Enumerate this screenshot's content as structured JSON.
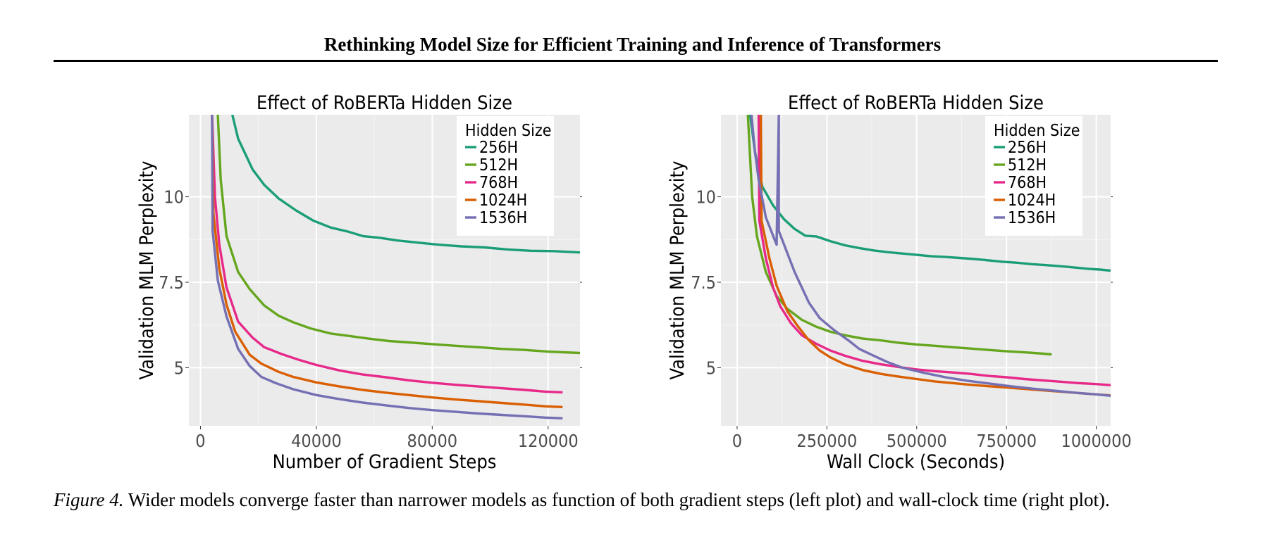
{
  "paper": {
    "header_title": "Rethinking Model Size for Efficient Training and Inference of Transformers",
    "caption_label": "Figure 4.",
    "caption_text": " Wider models converge faster than narrower models as function of both gradient steps (left plot) and wall-clock time (right plot)."
  },
  "chart_data": [
    {
      "type": "line",
      "title": "Effect of RoBERTa Hidden Size",
      "xlabel": "Number of Gradient Steps",
      "ylabel": "Validation MLM Perplexity",
      "xlim": [
        -4000,
        131000
      ],
      "ylim": [
        3.3,
        12.4
      ],
      "xticks": [
        0,
        40000,
        80000,
        120000
      ],
      "xtick_labels": [
        "0",
        "40000",
        "80000",
        "120000"
      ],
      "yticks": [
        5,
        7.5,
        10
      ],
      "ytick_labels": [
        "5",
        "7.5",
        "10"
      ],
      "grid": true,
      "legend_title": "Hidden Size",
      "legend_position": "top-right",
      "series": [
        {
          "name": "256H",
          "color": "#1b9e77",
          "points": [
            [
              11000,
              12.4
            ],
            [
              13000,
              11.7
            ],
            [
              18000,
              10.8
            ],
            [
              22000,
              10.35
            ],
            [
              27000,
              9.95
            ],
            [
              33000,
              9.6
            ],
            [
              39000,
              9.3
            ],
            [
              45000,
              9.1
            ],
            [
              51000,
              8.98
            ],
            [
              56000,
              8.85
            ],
            [
              62000,
              8.8
            ],
            [
              68000,
              8.72
            ],
            [
              75000,
              8.66
            ],
            [
              82000,
              8.6
            ],
            [
              90000,
              8.55
            ],
            [
              98000,
              8.52
            ],
            [
              106000,
              8.46
            ],
            [
              114000,
              8.42
            ],
            [
              122000,
              8.41
            ],
            [
              131000,
              8.37
            ]
          ]
        },
        {
          "name": "512H",
          "color": "#66a61e",
          "points": [
            [
              6000,
              12.4
            ],
            [
              7000,
              10.5
            ],
            [
              9000,
              8.85
            ],
            [
              13000,
              7.8
            ],
            [
              17000,
              7.3
            ],
            [
              22000,
              6.82
            ],
            [
              27000,
              6.52
            ],
            [
              32000,
              6.33
            ],
            [
              38000,
              6.15
            ],
            [
              45000,
              6.0
            ],
            [
              52000,
              5.92
            ],
            [
              58000,
              5.85
            ],
            [
              65000,
              5.78
            ],
            [
              72000,
              5.74
            ],
            [
              80000,
              5.69
            ],
            [
              88000,
              5.64
            ],
            [
              96000,
              5.6
            ],
            [
              104000,
              5.55
            ],
            [
              112000,
              5.52
            ],
            [
              120000,
              5.47
            ],
            [
              131000,
              5.43
            ]
          ]
        },
        {
          "name": "768H",
          "color": "#e7298a",
          "points": [
            [
              4000,
              12.4
            ],
            [
              5000,
              10.0
            ],
            [
              6500,
              8.6
            ],
            [
              9000,
              7.35
            ],
            [
              13000,
              6.35
            ],
            [
              18000,
              5.88
            ],
            [
              22000,
              5.6
            ],
            [
              28000,
              5.4
            ],
            [
              34000,
              5.23
            ],
            [
              40000,
              5.08
            ],
            [
              48000,
              4.92
            ],
            [
              56000,
              4.8
            ],
            [
              64000,
              4.72
            ],
            [
              72000,
              4.63
            ],
            [
              80000,
              4.56
            ],
            [
              88000,
              4.5
            ],
            [
              96000,
              4.45
            ],
            [
              104000,
              4.4
            ],
            [
              112000,
              4.35
            ],
            [
              119000,
              4.3
            ],
            [
              125000,
              4.28
            ]
          ]
        },
        {
          "name": "1024H",
          "color": "#d95f02",
          "points": [
            [
              4000,
              12.4
            ],
            [
              4500,
              9.5
            ],
            [
              6500,
              7.9
            ],
            [
              9000,
              6.85
            ],
            [
              12000,
              6.05
            ],
            [
              17000,
              5.38
            ],
            [
              21000,
              5.12
            ],
            [
              27000,
              4.88
            ],
            [
              32000,
              4.73
            ],
            [
              40000,
              4.57
            ],
            [
              48000,
              4.45
            ],
            [
              56000,
              4.35
            ],
            [
              64000,
              4.27
            ],
            [
              72000,
              4.2
            ],
            [
              80000,
              4.13
            ],
            [
              88000,
              4.07
            ],
            [
              96000,
              4.02
            ],
            [
              104000,
              3.97
            ],
            [
              112000,
              3.92
            ],
            [
              119000,
              3.87
            ],
            [
              125000,
              3.85
            ]
          ]
        },
        {
          "name": "1536H",
          "color": "#7570b3",
          "points": [
            [
              4000,
              12.4
            ],
            [
              4200,
              9.0
            ],
            [
              6000,
              7.55
            ],
            [
              9000,
              6.5
            ],
            [
              13000,
              5.55
            ],
            [
              17000,
              5.05
            ],
            [
              21000,
              4.73
            ],
            [
              26000,
              4.55
            ],
            [
              32000,
              4.37
            ],
            [
              40000,
              4.2
            ],
            [
              48000,
              4.08
            ],
            [
              56000,
              3.98
            ],
            [
              64000,
              3.9
            ],
            [
              72000,
              3.82
            ],
            [
              80000,
              3.76
            ],
            [
              88000,
              3.71
            ],
            [
              96000,
              3.66
            ],
            [
              104000,
              3.62
            ],
            [
              112000,
              3.58
            ],
            [
              119000,
              3.54
            ],
            [
              125000,
              3.52
            ]
          ]
        }
      ]
    },
    {
      "type": "line",
      "title": "Effect of RoBERTa Hidden Size",
      "xlabel": "Wall Clock (Seconds)",
      "ylabel": "Validation MLM Perplexity",
      "xlim": [
        -45000,
        1040000
      ],
      "ylim": [
        3.3,
        12.4
      ],
      "xticks": [
        0,
        250000,
        500000,
        750000,
        1000000
      ],
      "xtick_labels": [
        "0",
        "250000",
        "500000",
        "750000",
        "1000000"
      ],
      "yticks": [
        5,
        7.5,
        10
      ],
      "ytick_labels": [
        "5",
        "7.5",
        "10"
      ],
      "grid": true,
      "legend_title": "Hidden Size",
      "legend_position": "top-right",
      "series": [
        {
          "name": "256H",
          "color": "#1b9e77",
          "points": [
            [
              36000,
              12.4
            ],
            [
              50000,
              11.3
            ],
            [
              70000,
              10.3
            ],
            [
              100000,
              9.75
            ],
            [
              130000,
              9.35
            ],
            [
              160000,
              9.06
            ],
            [
              190000,
              8.86
            ],
            [
              220000,
              8.84
            ],
            [
              260000,
              8.7
            ],
            [
              300000,
              8.58
            ],
            [
              340000,
              8.5
            ],
            [
              380000,
              8.43
            ],
            [
              420000,
              8.38
            ],
            [
              460000,
              8.34
            ],
            [
              500000,
              8.3
            ],
            [
              540000,
              8.26
            ],
            [
              580000,
              8.24
            ],
            [
              620000,
              8.21
            ],
            [
              660000,
              8.18
            ],
            [
              700000,
              8.14
            ],
            [
              740000,
              8.1
            ],
            [
              780000,
              8.07
            ],
            [
              820000,
              8.03
            ],
            [
              860000,
              8.0
            ],
            [
              900000,
              7.97
            ],
            [
              940000,
              7.93
            ],
            [
              980000,
              7.89
            ],
            [
              1010000,
              7.87
            ],
            [
              1040000,
              7.84
            ]
          ]
        },
        {
          "name": "512H",
          "color": "#66a61e",
          "points": [
            [
              30000,
              12.4
            ],
            [
              42000,
              10.0
            ],
            [
              55000,
              8.85
            ],
            [
              80000,
              7.8
            ],
            [
              110000,
              7.1
            ],
            [
              140000,
              6.72
            ],
            [
              180000,
              6.4
            ],
            [
              220000,
              6.2
            ],
            [
              260000,
              6.05
            ],
            [
              300000,
              5.95
            ],
            [
              350000,
              5.85
            ],
            [
              400000,
              5.8
            ],
            [
              450000,
              5.73
            ],
            [
              500000,
              5.68
            ],
            [
              550000,
              5.64
            ],
            [
              600000,
              5.6
            ],
            [
              650000,
              5.56
            ],
            [
              700000,
              5.52
            ],
            [
              750000,
              5.48
            ],
            [
              800000,
              5.45
            ],
            [
              840000,
              5.42
            ],
            [
              876000,
              5.39
            ]
          ]
        },
        {
          "name": "768H",
          "color": "#e7298a",
          "points": [
            [
              60000,
              12.4
            ],
            [
              62000,
              9.3
            ],
            [
              80000,
              8.2
            ],
            [
              100000,
              7.35
            ],
            [
              120000,
              6.8
            ],
            [
              150000,
              6.3
            ],
            [
              180000,
              5.95
            ],
            [
              220000,
              5.7
            ],
            [
              260000,
              5.5
            ],
            [
              300000,
              5.35
            ],
            [
              350000,
              5.2
            ],
            [
              400000,
              5.1
            ],
            [
              450000,
              5.02
            ],
            [
              500000,
              4.95
            ],
            [
              550000,
              4.9
            ],
            [
              600000,
              4.86
            ],
            [
              650000,
              4.82
            ],
            [
              700000,
              4.76
            ],
            [
              750000,
              4.72
            ],
            [
              800000,
              4.67
            ],
            [
              850000,
              4.63
            ],
            [
              900000,
              4.59
            ],
            [
              950000,
              4.55
            ],
            [
              1000000,
              4.52
            ],
            [
              1040000,
              4.49
            ]
          ]
        },
        {
          "name": "1024H",
          "color": "#d95f02",
          "points": [
            [
              66000,
              12.4
            ],
            [
              68000,
              9.3
            ],
            [
              90000,
              8.2
            ],
            [
              110000,
              7.4
            ],
            [
              140000,
              6.65
            ],
            [
              170000,
              6.2
            ],
            [
              200000,
              5.8
            ],
            [
              230000,
              5.5
            ],
            [
              260000,
              5.3
            ],
            [
              300000,
              5.1
            ],
            [
              350000,
              4.93
            ],
            [
              400000,
              4.82
            ],
            [
              450000,
              4.74
            ],
            [
              500000,
              4.67
            ],
            [
              550000,
              4.6
            ],
            [
              600000,
              4.55
            ],
            [
              650000,
              4.5
            ],
            [
              700000,
              4.46
            ],
            [
              750000,
              4.42
            ],
            [
              800000,
              4.38
            ],
            [
              850000,
              4.34
            ],
            [
              900000,
              4.3
            ],
            [
              950000,
              4.26
            ],
            [
              1000000,
              4.22
            ],
            [
              1040000,
              4.19
            ]
          ]
        },
        {
          "name": "1536H",
          "color": "#7570b3",
          "points": [
            [
              40000,
              12.4
            ],
            [
              50000,
              11.3
            ],
            [
              60000,
              10.5
            ],
            [
              80000,
              9.4
            ],
            [
              110000,
              8.6
            ],
            [
              116000,
              12.4
            ],
            [
              116000,
              9.0
            ],
            [
              160000,
              7.8
            ],
            [
              200000,
              6.9
            ],
            [
              230000,
              6.45
            ],
            [
              270000,
              6.1
            ],
            [
              310000,
              5.8
            ],
            [
              340000,
              5.55
            ],
            [
              380000,
              5.35
            ],
            [
              420000,
              5.16
            ],
            [
              460000,
              5.0
            ],
            [
              520000,
              4.85
            ],
            [
              580000,
              4.72
            ],
            [
              640000,
              4.62
            ],
            [
              700000,
              4.54
            ],
            [
              760000,
              4.46
            ],
            [
              820000,
              4.39
            ],
            [
              880000,
              4.33
            ],
            [
              940000,
              4.27
            ],
            [
              1000000,
              4.22
            ],
            [
              1040000,
              4.18
            ]
          ]
        }
      ]
    }
  ]
}
